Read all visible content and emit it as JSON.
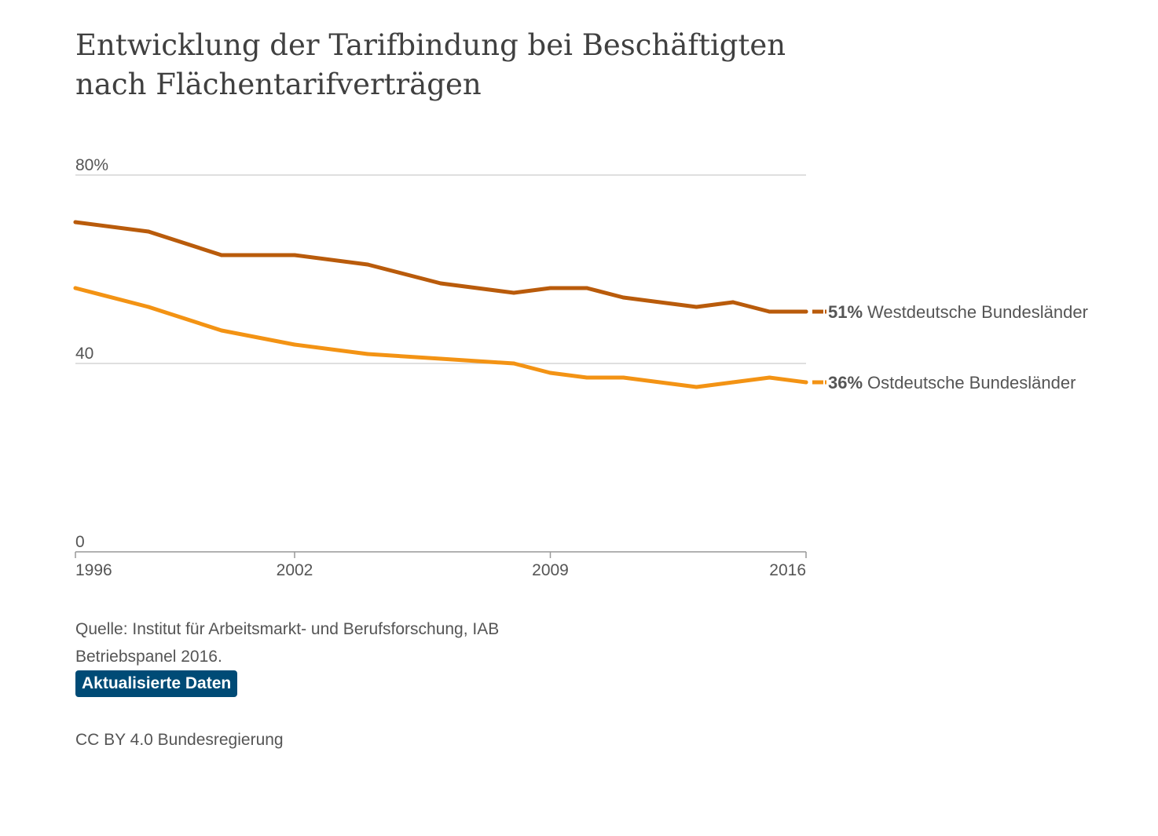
{
  "chart_data": {
    "type": "line",
    "title": "Entwicklung der Tarifbindung bei Beschäftigten nach Flächentarifverträgen",
    "x": [
      1996,
      1998,
      2000,
      2002,
      2004,
      2006,
      2008,
      2009,
      2010,
      2011,
      2013,
      2014,
      2015,
      2016
    ],
    "xticks": [
      "1996",
      "2002",
      "2009",
      "2016"
    ],
    "xlim": [
      1996,
      2016
    ],
    "ylim": [
      0,
      80
    ],
    "yticks": [
      {
        "value": 0,
        "label": "0"
      },
      {
        "value": 40,
        "label": "40"
      },
      {
        "value": 80,
        "label": "80%"
      }
    ],
    "grid": true,
    "series": [
      {
        "name": "Westdeutsche Bundesländer",
        "end_label": "51%",
        "color": "#b95b0b",
        "values": [
          70,
          68,
          63,
          63,
          61,
          57,
          55,
          56,
          56,
          54,
          52,
          53,
          51,
          51
        ]
      },
      {
        "name": "Ostdeutsche Bundesländer",
        "end_label": "36%",
        "color": "#f39314",
        "values": [
          56,
          52,
          47,
          44,
          42,
          41,
          40,
          38,
          37,
          37,
          35,
          36,
          37,
          36
        ]
      }
    ]
  },
  "footer": {
    "source": "Quelle: Institut für Arbeitsmarkt- und Berufsforschung, IAB Betriebspanel 2016.",
    "updated_label": "Aktualisierte Daten",
    "license": "CC BY 4.0 Bundesregierung"
  },
  "colors": {
    "button_bg": "#004b76",
    "grid": "#cccccc",
    "axis": "#999999",
    "text": "#555555"
  }
}
